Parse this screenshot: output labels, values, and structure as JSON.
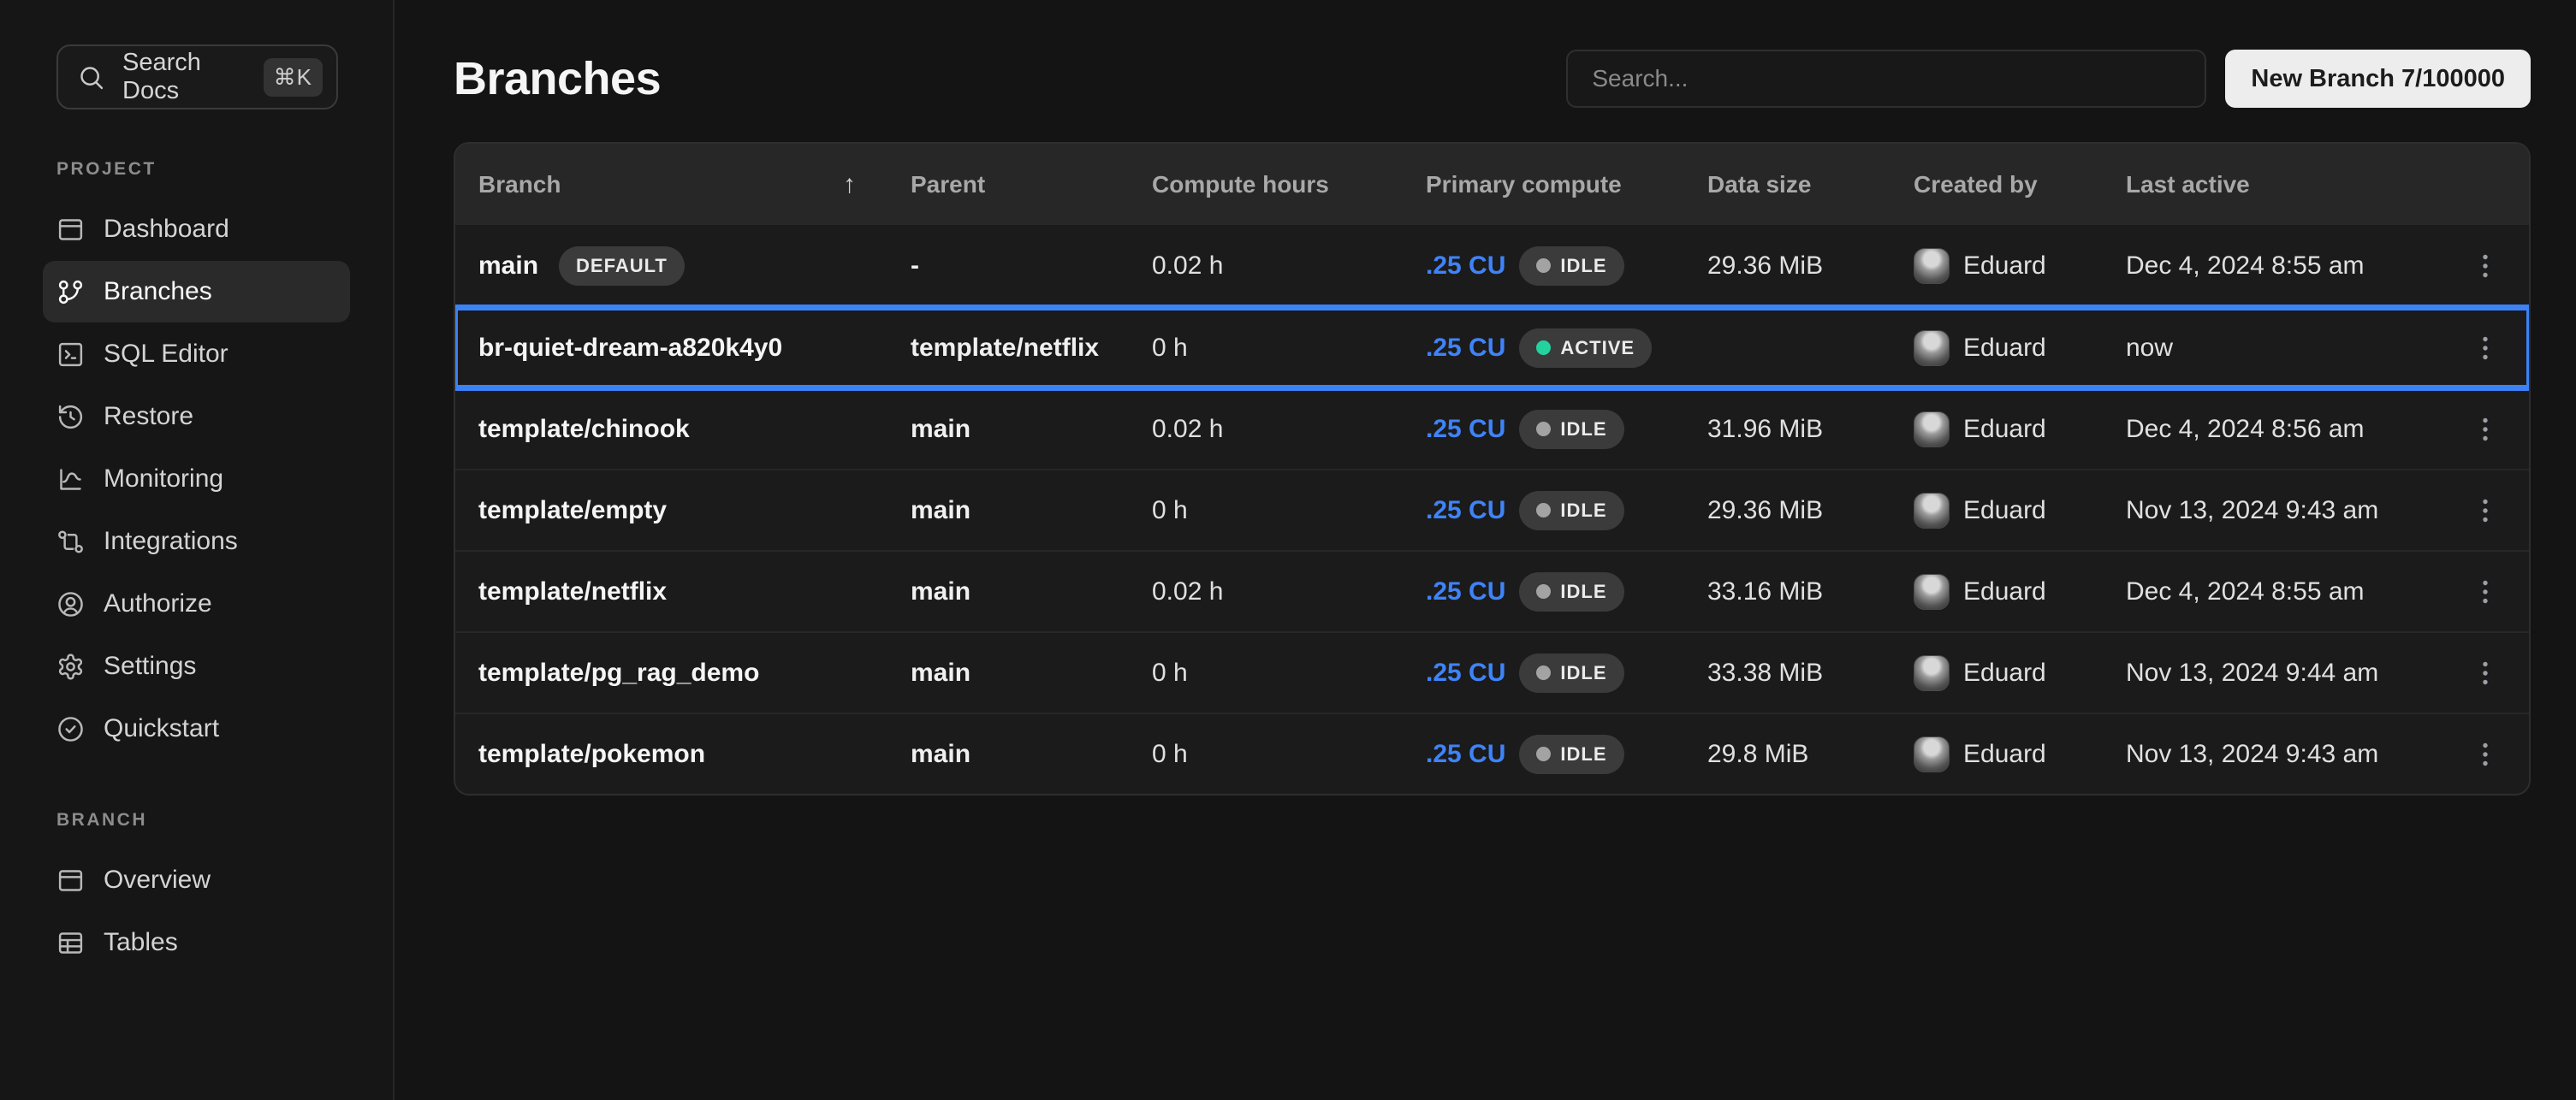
{
  "colors": {
    "accent_blue": "#3b82f6",
    "active_green": "#22d3a0",
    "idle_gray": "#a3a3a3",
    "highlight_border": "#3b82f6"
  },
  "sidebar": {
    "search": {
      "label": "Search Docs",
      "shortcut": "⌘K"
    },
    "sections": [
      {
        "label": "PROJECT",
        "items": [
          {
            "label": "Dashboard"
          },
          {
            "label": "Branches"
          },
          {
            "label": "SQL Editor"
          },
          {
            "label": "Restore"
          },
          {
            "label": "Monitoring"
          },
          {
            "label": "Integrations"
          },
          {
            "label": "Authorize"
          },
          {
            "label": "Settings"
          },
          {
            "label": "Quickstart"
          }
        ],
        "active_item": "Branches"
      },
      {
        "label": "BRANCH",
        "items": [
          {
            "label": "Overview"
          },
          {
            "label": "Tables"
          }
        ]
      }
    ]
  },
  "main": {
    "title": "Branches",
    "search_placeholder": "Search...",
    "new_branch_label": "New Branch 7/100000"
  },
  "table": {
    "columns": [
      "Branch",
      "Parent",
      "Compute hours",
      "Primary compute",
      "Data size",
      "Created by",
      "Last active"
    ],
    "sort": {
      "column": "Branch",
      "direction": "asc",
      "icon": "↑"
    },
    "rows": [
      {
        "branch": "main",
        "badge": "DEFAULT",
        "parent": "-",
        "compute_hours": "0.02 h",
        "primary_compute": ".25 CU",
        "status": "IDLE",
        "data_size": "29.36 MiB",
        "created_by": "Eduard",
        "last_active": "Dec 4, 2024 8:55 am",
        "highlighted": false
      },
      {
        "branch": "br-quiet-dream-a820k4y0",
        "badge": "",
        "parent": "template/netflix",
        "compute_hours": "0 h",
        "primary_compute": ".25 CU",
        "status": "ACTIVE",
        "data_size": "",
        "created_by": "Eduard",
        "last_active": "now",
        "highlighted": true
      },
      {
        "branch": "template/chinook",
        "badge": "",
        "parent": "main",
        "compute_hours": "0.02 h",
        "primary_compute": ".25 CU",
        "status": "IDLE",
        "data_size": "31.96 MiB",
        "created_by": "Eduard",
        "last_active": "Dec 4, 2024 8:56 am",
        "highlighted": false
      },
      {
        "branch": "template/empty",
        "badge": "",
        "parent": "main",
        "compute_hours": "0 h",
        "primary_compute": ".25 CU",
        "status": "IDLE",
        "data_size": "29.36 MiB",
        "created_by": "Eduard",
        "last_active": "Nov 13, 2024 9:43 am",
        "highlighted": false
      },
      {
        "branch": "template/netflix",
        "badge": "",
        "parent": "main",
        "compute_hours": "0.02 h",
        "primary_compute": ".25 CU",
        "status": "IDLE",
        "data_size": "33.16 MiB",
        "created_by": "Eduard",
        "last_active": "Dec 4, 2024 8:55 am",
        "highlighted": false
      },
      {
        "branch": "template/pg_rag_demo",
        "badge": "",
        "parent": "main",
        "compute_hours": "0 h",
        "primary_compute": ".25 CU",
        "status": "IDLE",
        "data_size": "33.38 MiB",
        "created_by": "Eduard",
        "last_active": "Nov 13, 2024 9:44 am",
        "highlighted": false
      },
      {
        "branch": "template/pokemon",
        "badge": "",
        "parent": "main",
        "compute_hours": "0 h",
        "primary_compute": ".25 CU",
        "status": "IDLE",
        "data_size": "29.8 MiB",
        "created_by": "Eduard",
        "last_active": "Nov 13, 2024 9:43 am",
        "highlighted": false
      }
    ]
  }
}
